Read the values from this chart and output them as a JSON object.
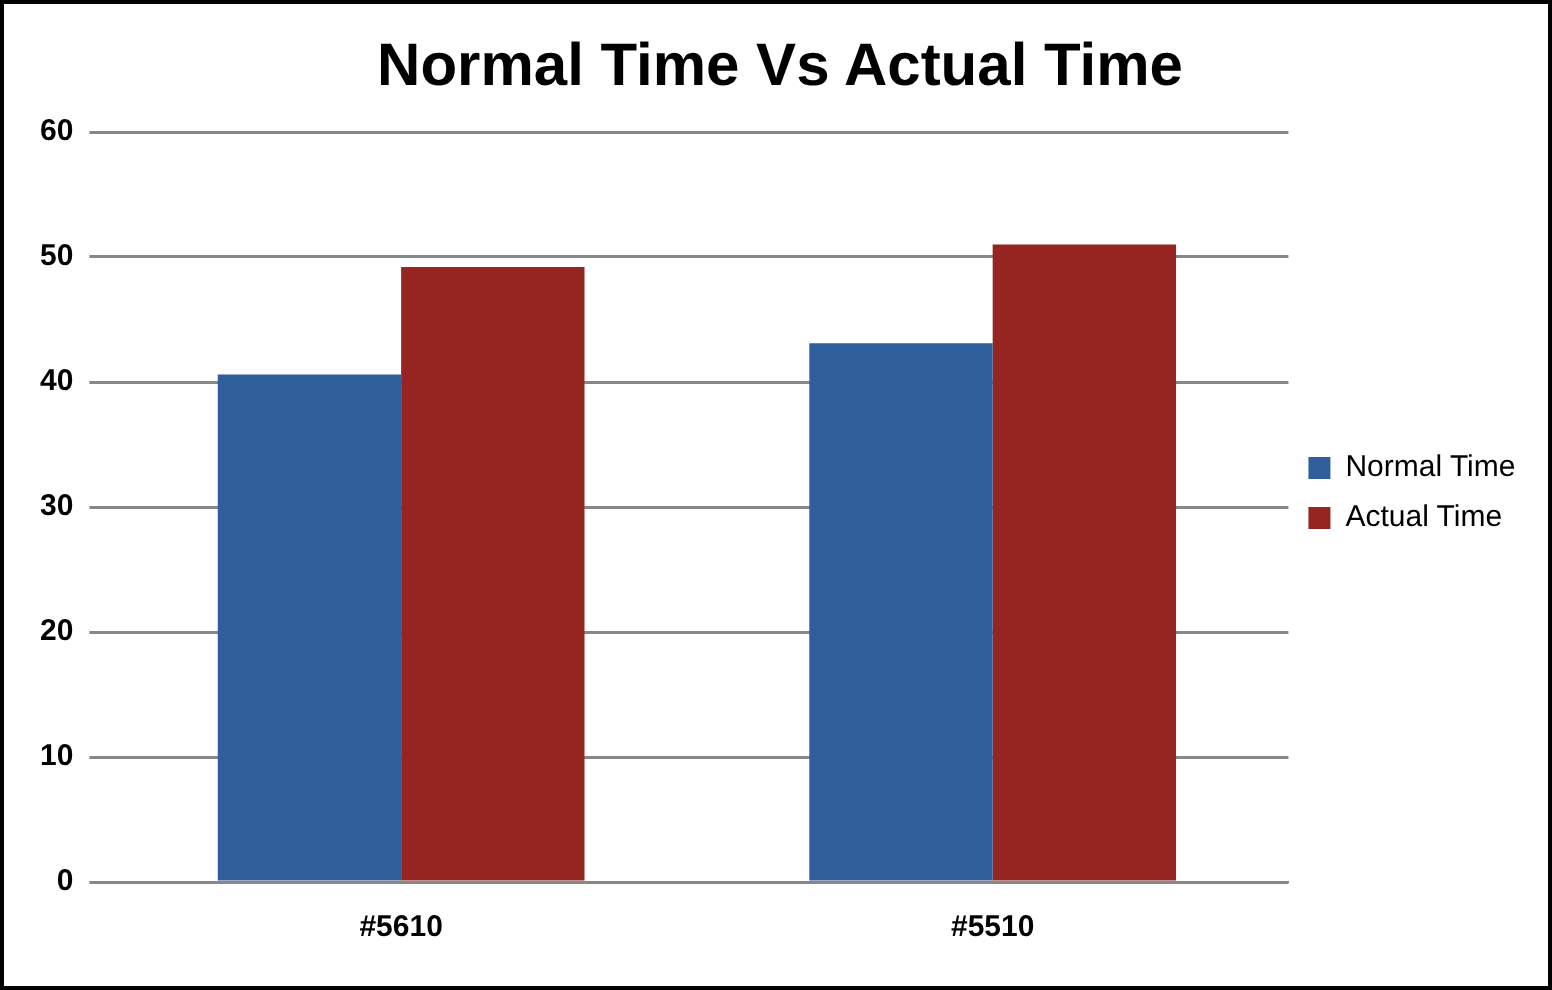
{
  "chart_data": {
    "type": "bar",
    "title": "Normal Time Vs Actual Time",
    "categories": [
      "#5610",
      "#5510"
    ],
    "series": [
      {
        "name": "Normal Time",
        "color": "#2e5f9a",
        "values": [
          40.6,
          43.1
        ]
      },
      {
        "name": "Actual Time",
        "color": "#962521",
        "values": [
          49.2,
          51.0
        ]
      }
    ],
    "ylim": [
      0,
      60
    ],
    "yticks": [
      0,
      10,
      20,
      30,
      40,
      50,
      60
    ],
    "grid": "y",
    "legend": "right"
  }
}
